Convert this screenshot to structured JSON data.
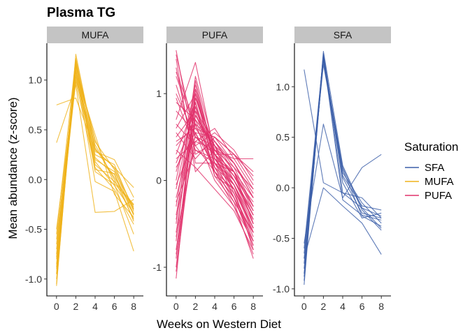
{
  "title": "Plasma TG",
  "xlabel": "Weeks on Western Diet",
  "ylabel": "Mean abundance (z-score)",
  "legend": {
    "title": "Saturation",
    "items": [
      {
        "label": "SFA",
        "color": "#3a5ea8"
      },
      {
        "label": "MUFA",
        "color": "#efb21a"
      },
      {
        "label": "PUFA",
        "color": "#e0306a"
      }
    ]
  },
  "chart_data": {
    "type": "line",
    "x_ticks": [
      0,
      2,
      4,
      6,
      8
    ],
    "xlim": [
      -1.0,
      9.0
    ],
    "panels": [
      {
        "name": "MUFA",
        "color": "#efb21a",
        "ylim": [
          -1.17,
          1.37
        ],
        "y_ticks": [
          -1.0,
          -0.5,
          0.0,
          0.5,
          1.0
        ],
        "y_tick_labels": [
          "-1.0",
          "-0.5",
          "0.0",
          "0.5",
          "1.0"
        ],
        "lines": [
          [
            0.75,
            0.82,
            0.3,
            0.12,
            -0.08
          ],
          [
            0.37,
            0.95,
            -0.33,
            -0.32,
            -0.2
          ],
          [
            -1.07,
            1.26,
            0.3,
            0.12,
            -0.3
          ],
          [
            -1.0,
            1.2,
            0.22,
            0.05,
            -0.42
          ],
          [
            -0.95,
            1.15,
            0.38,
            0.1,
            -0.35
          ],
          [
            -0.9,
            1.1,
            0.15,
            -0.02,
            -0.25
          ],
          [
            -0.85,
            1.05,
            0.25,
            0.15,
            -0.32
          ],
          [
            -0.8,
            1.0,
            0.35,
            0.0,
            -0.4
          ],
          [
            -0.75,
            1.18,
            0.08,
            -0.05,
            -0.55
          ],
          [
            -0.7,
            1.08,
            0.45,
            -0.15,
            -0.38
          ],
          [
            -0.65,
            1.12,
            0.2,
            0.08,
            -0.28
          ],
          [
            -0.6,
            0.98,
            0.12,
            -0.1,
            -0.45
          ],
          [
            -0.55,
            1.22,
            0.32,
            0.02,
            -0.3
          ],
          [
            -0.5,
            1.03,
            0.18,
            -0.06,
            -0.34
          ],
          [
            -0.88,
            1.16,
            0.28,
            0.2,
            -0.18
          ],
          [
            -0.95,
            1.09,
            -0.02,
            -0.12,
            -0.72
          ],
          [
            -0.78,
            1.14,
            0.4,
            -0.04,
            -0.26
          ],
          [
            -1.05,
            1.2,
            0.1,
            0.06,
            -0.36
          ]
        ]
      },
      {
        "name": "PUFA",
        "color": "#e0306a",
        "ylim": [
          -1.33,
          1.58
        ],
        "y_ticks": [
          -1,
          0,
          1
        ],
        "y_tick_labels": [
          "-1",
          "0",
          "1"
        ],
        "lines": [
          [
            1.5,
            0.3,
            0.45,
            0.1,
            -0.5
          ],
          [
            1.4,
            0.1,
            0.35,
            0.25,
            0.25
          ],
          [
            1.3,
            0.2,
            0.2,
            -0.1,
            -0.6
          ],
          [
            1.2,
            0.6,
            0.5,
            0.3,
            0.1
          ],
          [
            1.1,
            0.4,
            0.1,
            -0.2,
            -0.7
          ],
          [
            1.0,
            0.5,
            0.3,
            0.0,
            -0.4
          ],
          [
            0.9,
            0.7,
            0.4,
            0.2,
            -0.2
          ],
          [
            0.8,
            0.55,
            0.15,
            -0.05,
            -0.55
          ],
          [
            0.7,
            1.36,
            0.3,
            0.1,
            -0.3
          ],
          [
            0.6,
            1.0,
            0.25,
            -0.1,
            -0.8
          ],
          [
            0.5,
            0.8,
            0.05,
            -0.25,
            -0.6
          ],
          [
            0.4,
            0.65,
            0.45,
            0.15,
            -0.1
          ],
          [
            0.3,
            0.9,
            0.2,
            -0.05,
            -0.45
          ],
          [
            0.2,
            0.75,
            0.35,
            0.05,
            -0.25
          ],
          [
            0.1,
            0.85,
            0.1,
            -0.3,
            -0.85
          ],
          [
            0.0,
            1.1,
            0.25,
            0.1,
            -0.5
          ],
          [
            -0.1,
            0.95,
            0.4,
            0.0,
            -0.35
          ],
          [
            -0.2,
            0.7,
            0.15,
            -0.15,
            -0.65
          ],
          [
            -0.3,
            1.05,
            0.3,
            0.05,
            -0.4
          ],
          [
            -0.4,
            0.85,
            0.2,
            -0.2,
            -0.75
          ],
          [
            -0.5,
            1.2,
            0.35,
            0.15,
            -0.3
          ],
          [
            -0.6,
            0.9,
            0.05,
            -0.1,
            -0.55
          ],
          [
            -0.7,
            1.15,
            0.25,
            0.0,
            -0.45
          ],
          [
            -0.8,
            0.8,
            0.45,
            0.2,
            -0.2
          ],
          [
            -0.9,
            1.0,
            0.15,
            -0.25,
            -0.9
          ],
          [
            -1.0,
            0.95,
            0.3,
            -0.05,
            -0.6
          ],
          [
            -1.13,
            1.05,
            0.2,
            0.1,
            -0.35
          ],
          [
            -1.05,
            0.75,
            0.4,
            -0.15,
            -0.7
          ],
          [
            0.65,
            0.4,
            0.55,
            0.35,
            0.0
          ],
          [
            0.55,
            0.25,
            0.5,
            0.2,
            -0.15
          ],
          [
            0.45,
            0.6,
            0.3,
            0.3,
            0.05
          ],
          [
            0.35,
            0.15,
            -0.1,
            -0.35,
            -0.8
          ],
          [
            0.25,
            0.45,
            0.6,
            0.25,
            -0.1
          ],
          [
            0.15,
            0.55,
            0.0,
            -0.3,
            -0.7
          ],
          [
            -0.05,
            0.5,
            0.4,
            0.1,
            -0.2
          ],
          [
            -0.25,
            0.35,
            0.25,
            -0.05,
            -0.5
          ],
          [
            -0.45,
            0.65,
            0.1,
            -0.2,
            -0.6
          ],
          [
            -0.65,
            0.45,
            0.35,
            0.05,
            -0.3
          ],
          [
            -0.85,
            0.55,
            0.5,
            0.3,
            -0.05
          ],
          [
            1.45,
            0.5,
            0.3,
            -0.2,
            -0.75
          ],
          [
            1.25,
            0.65,
            0.1,
            -0.1,
            -0.55
          ],
          [
            0.95,
            0.35,
            0.2,
            0.0,
            -0.4
          ]
        ]
      },
      {
        "name": "SFA",
        "color": "#3a5ea8",
        "ylim": [
          -1.07,
          1.43
        ],
        "y_ticks": [
          -1.0,
          -0.5,
          0.0,
          0.5,
          1.0
        ],
        "y_tick_labels": [
          "-1.0",
          "-0.5",
          "0.0",
          "0.5",
          "1.0"
        ],
        "lines": [
          [
            1.17,
            0.05,
            -0.05,
            -0.1,
            -0.3
          ],
          [
            -0.55,
            0.63,
            -0.1,
            0.2,
            0.33
          ],
          [
            -0.96,
            1.35,
            0.22,
            -0.2,
            -0.4
          ],
          [
            -0.92,
            1.3,
            0.15,
            -0.15,
            -0.35
          ],
          [
            -0.88,
            1.28,
            0.1,
            -0.25,
            -0.3
          ],
          [
            -0.85,
            1.33,
            0.05,
            -0.3,
            -0.25
          ],
          [
            -0.8,
            1.27,
            0.2,
            -0.22,
            -0.42
          ],
          [
            -0.75,
            1.25,
            0.12,
            -0.18,
            -0.22
          ],
          [
            -0.7,
            1.32,
            -0.05,
            -0.2,
            -0.28
          ],
          [
            -0.65,
            1.22,
            0.18,
            -0.28,
            -0.38
          ],
          [
            -0.7,
            0.0,
            -0.18,
            -0.35,
            -0.66
          ],
          [
            -0.6,
            1.3,
            -0.12,
            -0.27,
            -0.32
          ]
        ]
      }
    ]
  }
}
